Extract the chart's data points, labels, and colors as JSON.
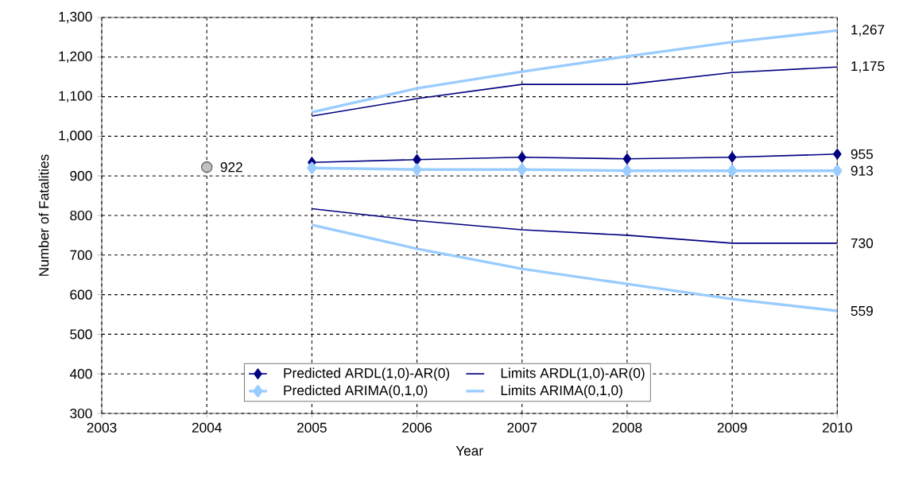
{
  "chart_data": {
    "type": "line",
    "xlabel": "Year",
    "ylabel": "Number of Fatalities",
    "xlim": [
      2003,
      2010
    ],
    "xticks": [
      2003,
      2004,
      2005,
      2006,
      2007,
      2008,
      2009,
      2010
    ],
    "ylim": [
      300,
      1300
    ],
    "yticks": [
      300,
      400,
      500,
      600,
      700,
      800,
      900,
      {
        "value": 1000,
        "label": "1,000"
      },
      {
        "value": 1100,
        "label": "1,100"
      },
      {
        "value": 1200,
        "label": "1,200"
      },
      {
        "value": 1300,
        "label": "1,300"
      }
    ],
    "grid": true,
    "legend": "bottom",
    "line_style": "solid",
    "x": [
      2005,
      2006,
      2007,
      2008,
      2009,
      2010
    ],
    "series": [
      {
        "name": "Predicted ARDL(1,0)-AR(0)",
        "color": "#000080",
        "marker": "diamond",
        "values": [
          934,
          941,
          947,
          943,
          947,
          955
        ],
        "value_labels": [
          null,
          null,
          null,
          null,
          null,
          "955"
        ]
      },
      {
        "name": "Limits ARDL(1,0)-AR(0)",
        "color": "#000080",
        "marker": "none",
        "values": [
          1051,
          1095,
          1131,
          1131,
          1161,
          1175
        ],
        "value_labels": [
          null,
          null,
          null,
          null,
          null,
          "1,175"
        ]
      },
      {
        "name": "Predicted ARIMA(0,1,0)",
        "color": "#99ccff",
        "marker": "diamond",
        "values": [
          920,
          916,
          916,
          913,
          913,
          913
        ],
        "value_labels": [
          null,
          null,
          null,
          null,
          null,
          "913"
        ]
      },
      {
        "name": "Limits ARIMA(0,1,0)",
        "color": "#99ccff",
        "marker": "none",
        "values": [
          1061,
          1121,
          1163,
          1202,
          1238,
          1267
        ],
        "value_labels": [
          null,
          null,
          null,
          null,
          null,
          "1,267"
        ]
      },
      {
        "color": "#000080",
        "marker": "none",
        "values": [
          817,
          787,
          764,
          750,
          730,
          730
        ],
        "value_labels": [
          null,
          null,
          null,
          null,
          null,
          "730"
        ]
      },
      {
        "color": "#99ccff",
        "marker": "none",
        "values": [
          776,
          716,
          665,
          627,
          589,
          559
        ],
        "value_labels": [
          null,
          null,
          null,
          null,
          null,
          "559"
        ]
      },
      {
        "type": "scatter",
        "x": [
          2004
        ],
        "color": "#c0c0c0",
        "marker": "circle",
        "values": [
          922
        ],
        "value_labels": [
          "922"
        ]
      }
    ]
  }
}
